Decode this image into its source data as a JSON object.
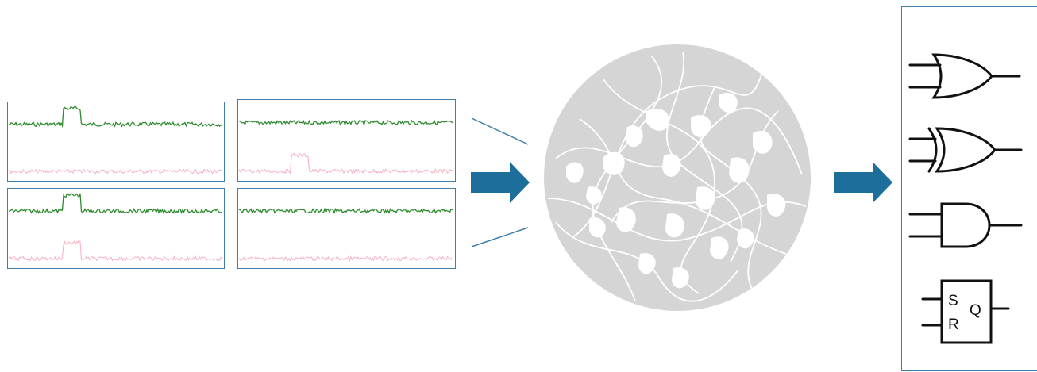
{
  "colors": {
    "panel_border": "#3d7eaa",
    "signal_green": "#2e8b2e",
    "signal_pink": "#f4b6c4",
    "arrow": "#1d6e9b",
    "disc_fill": "#d5d5d5",
    "disc_lines": "#ffffff",
    "gate_stroke": "#111111"
  },
  "signal_panels": [
    {
      "id": "top-left",
      "green_pulse": true,
      "pink_pulse": false
    },
    {
      "id": "top-right",
      "green_pulse": false,
      "pink_pulse": true
    },
    {
      "id": "bottom-left",
      "green_pulse": true,
      "pink_pulse": true
    },
    {
      "id": "bottom-right",
      "green_pulse": false,
      "pink_pulse": false
    }
  ],
  "gates": [
    {
      "type": "or",
      "icon": "or-gate-icon"
    },
    {
      "type": "xor",
      "icon": "xor-gate-icon"
    },
    {
      "type": "and",
      "icon": "and-gate-icon"
    },
    {
      "type": "sr-latch",
      "icon": "sr-latch-icon"
    }
  ],
  "latch": {
    "s_label": "S",
    "r_label": "R",
    "q_label": "Q"
  }
}
